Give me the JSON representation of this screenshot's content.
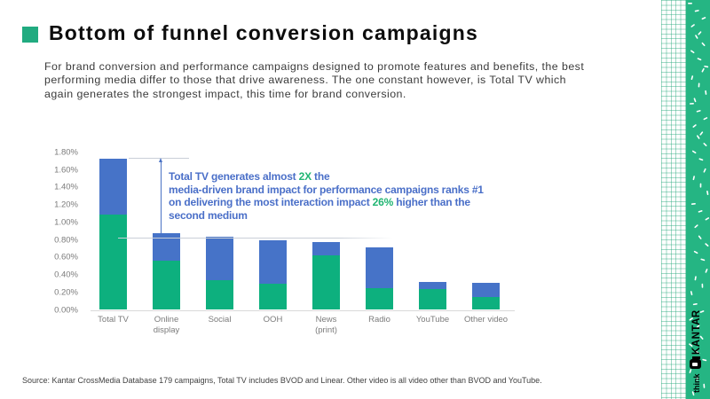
{
  "slide": {
    "title": "Bottom of funnel conversion campaigns",
    "intro": "For brand conversion and performance campaigns designed to promote features and benefits, the best\nperforming media differ to those that drive awareness. The one constant however, is Total TV which\nagain generates the strongest impact, this time for brand conversion.",
    "source": "Source: Kantar CrossMedia Database 179 campaigns, Total TV includes BVOD and Linear. Other video is all video other than BVOD and YouTube."
  },
  "annotation": {
    "segments": [
      {
        "text": "Total TV generates almost ",
        "color": "blue"
      },
      {
        "text": "2X",
        "color": "green"
      },
      {
        "text": " the\nmedia-driven brand impact for performance campaigns ranks #1\non delivering the most interaction impact ",
        "color": "blue"
      },
      {
        "text": "26%",
        "color": "green"
      },
      {
        "text": " higher than the\nsecond medium",
        "color": "blue"
      }
    ]
  },
  "chart_data": {
    "type": "bar",
    "stacked": true,
    "title": "",
    "xlabel": "",
    "ylabel": "",
    "ylim": [
      0,
      1.8
    ],
    "grid": false,
    "categories": [
      "Total TV",
      "Online display",
      "Social",
      "OOH",
      "News (print)",
      "Radio",
      "YouTube",
      "Other video"
    ],
    "category_lines": [
      [
        "Total TV"
      ],
      [
        "Online",
        "display"
      ],
      [
        "Social"
      ],
      [
        "OOH"
      ],
      [
        "News",
        "(print)"
      ],
      [
        "Radio"
      ],
      [
        "YouTube"
      ],
      [
        "Other video"
      ]
    ],
    "yticks": [
      "1.80%",
      "1.60%",
      "1.40%",
      "1.20%",
      "1.00%",
      "0.80%",
      "0.60%",
      "0.40%",
      "0.20%",
      "0.00%"
    ],
    "series": [
      {
        "name": "brand-conversion-green",
        "color": "#0db07e",
        "values": [
          1.09,
          0.56,
          0.34,
          0.3,
          0.62,
          0.25,
          0.24,
          0.15
        ]
      },
      {
        "name": "brand-conversion-blue",
        "color": "#4673c8",
        "values": [
          0.64,
          0.32,
          0.5,
          0.5,
          0.16,
          0.46,
          0.08,
          0.16
        ]
      }
    ]
  },
  "branding": {
    "kantar": "KANTAR",
    "think": "think"
  },
  "colors": {
    "accent_green": "#21ab80",
    "bar_green": "#0db07e",
    "bar_blue": "#4673c8",
    "annotation_blue": "#4a6fc8",
    "annotation_green": "#21b573",
    "strip_green": "#25b583"
  }
}
